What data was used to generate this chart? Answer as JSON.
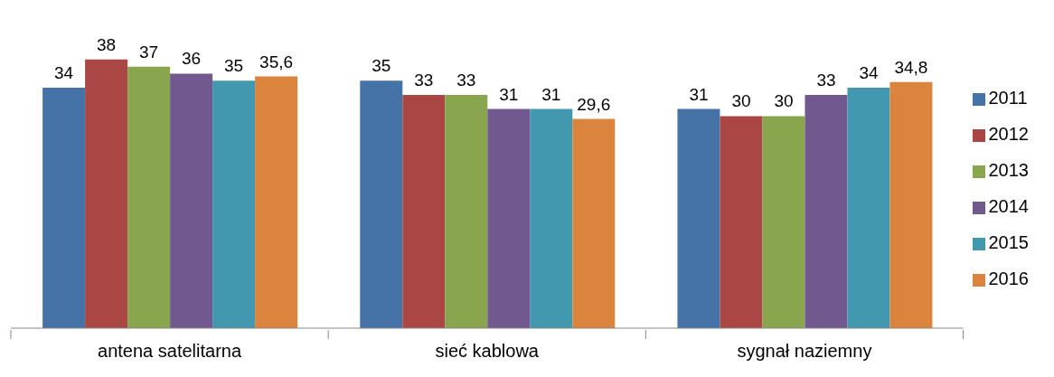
{
  "chart_data": {
    "type": "bar",
    "categories": [
      "antena satelitarna",
      "sieć kablowa",
      "sygnał naziemny"
    ],
    "series": [
      {
        "name": "2011",
        "color": "#4572a7",
        "values": [
          34,
          35,
          31
        ],
        "value_labels": [
          "34",
          "35",
          "31"
        ]
      },
      {
        "name": "2012",
        "color": "#aa4643",
        "values": [
          38,
          33,
          30
        ],
        "value_labels": [
          "38",
          "33",
          "30"
        ]
      },
      {
        "name": "2013",
        "color": "#89a54e",
        "values": [
          37,
          33,
          30
        ],
        "value_labels": [
          "37",
          "33",
          "30"
        ]
      },
      {
        "name": "2014",
        "color": "#71588f",
        "values": [
          36,
          31,
          33
        ],
        "value_labels": [
          "36",
          "31",
          "33"
        ]
      },
      {
        "name": "2015",
        "color": "#4198af",
        "values": [
          35,
          31,
          34
        ],
        "value_labels": [
          "35",
          "31",
          "34"
        ]
      },
      {
        "name": "2016",
        "color": "#db843d",
        "values": [
          35.6,
          29.6,
          34.8
        ],
        "value_labels": [
          "35,6",
          "29,6",
          "34,8"
        ]
      }
    ],
    "legend": "right"
  }
}
